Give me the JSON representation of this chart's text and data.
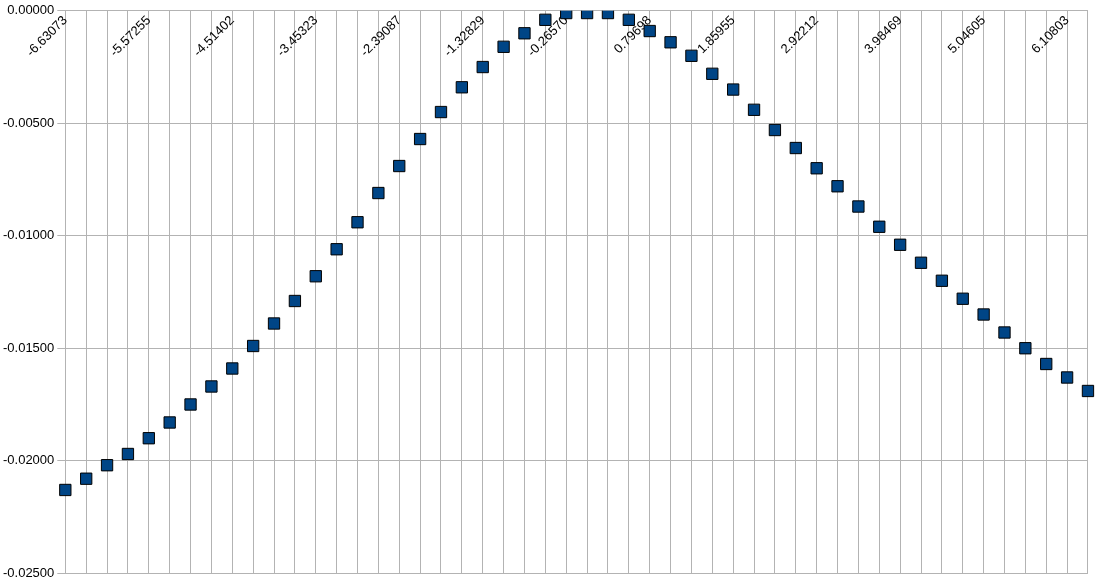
{
  "chart_data": {
    "type": "scatter",
    "categories": [
      "-6.63073",
      null,
      null,
      null,
      "-5.57255",
      null,
      null,
      null,
      "-4.51402",
      null,
      null,
      null,
      "-3.45323",
      null,
      null,
      null,
      "-2.39087",
      null,
      null,
      null,
      "-1.32829",
      null,
      null,
      null,
      "-0.26570",
      null,
      null,
      null,
      "0.79698",
      null,
      null,
      null,
      "1.85955",
      null,
      null,
      null,
      "2.92212",
      null,
      null,
      null,
      "3.98469",
      null,
      null,
      null,
      "5.04605",
      null,
      null,
      null,
      "6.10803",
      null
    ],
    "series": [
      {
        "color": "#004586",
        "values": [
          -0.0213,
          -0.0208,
          -0.0202,
          -0.0197,
          -0.019,
          -0.0183,
          -0.0175,
          -0.0167,
          -0.0159,
          -0.0149,
          -0.0139,
          -0.0129,
          -0.0118,
          -0.0106,
          -0.0094,
          -0.0081,
          -0.0069,
          -0.0057,
          -0.0045,
          -0.0034,
          -0.0025,
          -0.0016,
          -0.001,
          -0.0004,
          -0.0001,
          -0.0001,
          -0.0001,
          -0.0004,
          -0.0009,
          -0.0014,
          -0.002,
          -0.0028,
          -0.0035,
          -0.0044,
          -0.0053,
          -0.0061,
          -0.007,
          -0.0078,
          -0.0087,
          -0.0096,
          -0.0104,
          -0.0112,
          -0.012,
          -0.0128,
          -0.0135,
          -0.0143,
          -0.015,
          -0.0157,
          -0.0163,
          -0.0169
        ]
      }
    ],
    "ylim": [
      -0.025,
      0
    ],
    "yticks": [
      {
        "value": 0,
        "label": "0.00000"
      },
      {
        "value": -0.005,
        "label": "-0.00500"
      },
      {
        "value": -0.01,
        "label": "-0.01000"
      },
      {
        "value": -0.015,
        "label": "-0.01500"
      },
      {
        "value": -0.02,
        "label": "-0.02000"
      },
      {
        "value": -0.025,
        "label": "-0.02500"
      }
    ],
    "grid": true,
    "marker": "square"
  }
}
